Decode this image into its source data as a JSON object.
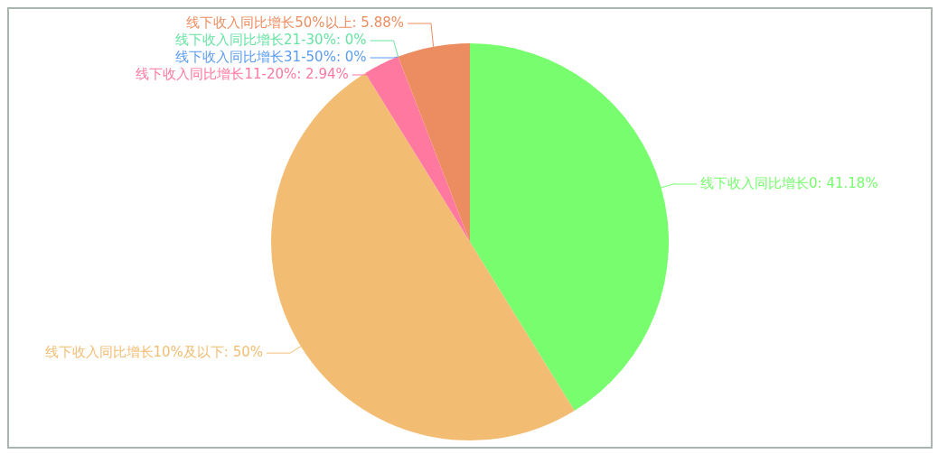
{
  "chart_data": {
    "type": "pie",
    "categories": [
      "线下收入同比增长0",
      "线下收入同比增长10%及以下",
      "线下收入同比增长11-20%",
      "线下收入同比增长31-50%",
      "线下收入同比增长21-30%",
      "线下收入同比增长50%以上"
    ],
    "values": [
      41.18,
      50,
      2.94,
      0,
      0,
      5.88
    ],
    "colors": [
      "#77fd6e",
      "#f2bd73",
      "#fe789f",
      "#5b9cf0",
      "#67e3a3",
      "#ec8d61"
    ],
    "value_labels": [
      ": 41.18%",
      ": 50%",
      ": 2.94%",
      ": 0%",
      ": 0%",
      ": 5.88%"
    ],
    "legend": false
  }
}
